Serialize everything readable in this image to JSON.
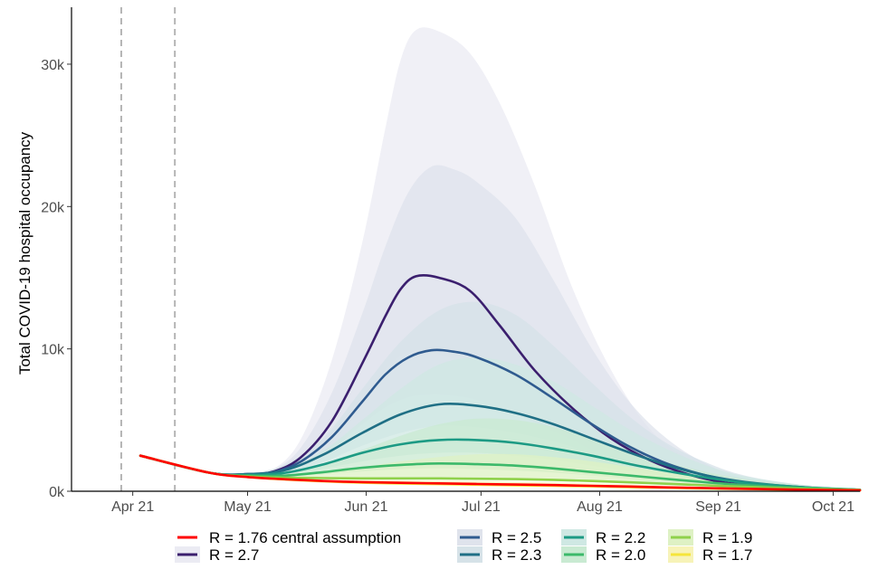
{
  "chart_data": {
    "type": "area",
    "title": "",
    "xlabel": "",
    "ylabel": "Total COVID-19 hospital occupancy",
    "x_tick_labels": [
      "Apr 21",
      "May 21",
      "Jun 21",
      "Jul 21",
      "Aug 21",
      "Sep 21",
      "Oct 21"
    ],
    "y_tick_labels": [
      "0k",
      "10k",
      "20k",
      "30k"
    ],
    "y_ticks": [
      0,
      10000,
      20000,
      30000
    ],
    "ylim": [
      0,
      34000
    ],
    "xlim_days": [
      -16,
      190
    ],
    "x_ticks_days": [
      0,
      30,
      61,
      91,
      122,
      153,
      183
    ],
    "vlines_days": [
      -3,
      11
    ],
    "series": [
      {
        "name": "R = 2.7",
        "color": "#3b1f6e",
        "band_color": "#ebebf3",
        "x_days": [
          2,
          20,
          30,
          37,
          44,
          52,
          60,
          66,
          70,
          74,
          80,
          88,
          96,
          105,
          115,
          125,
          135,
          145,
          155,
          170,
          185,
          190
        ],
        "values": [
          2500,
          1300,
          1200,
          1400,
          2400,
          4900,
          9000,
          12300,
          14200,
          15100,
          15000,
          14100,
          11600,
          8500,
          5800,
          3700,
          2200,
          1200,
          600,
          200,
          80,
          60
        ],
        "band_low": [
          2500,
          1300,
          1200,
          1300,
          2000,
          3800,
          6500,
          8500,
          9500,
          9800,
          9600,
          8800,
          7200,
          5300,
          3600,
          2300,
          1400,
          800,
          400,
          150,
          60,
          40
        ],
        "band_high": [
          2500,
          1300,
          1250,
          1600,
          3700,
          9200,
          17500,
          25500,
          30300,
          32400,
          32300,
          30800,
          27200,
          21500,
          14200,
          8500,
          4400,
          2300,
          1100,
          400,
          150,
          100
        ]
      },
      {
        "name": "R = 2.5",
        "color": "#2f5b8f",
        "band_color": "#dfe3ec",
        "x_days": [
          2,
          20,
          30,
          37,
          44,
          52,
          60,
          66,
          72,
          78,
          84,
          90,
          100,
          110,
          120,
          130,
          140,
          150,
          160,
          175,
          190
        ],
        "values": [
          2500,
          1300,
          1200,
          1350,
          2100,
          3800,
          6300,
          8200,
          9400,
          9900,
          9800,
          9400,
          8200,
          6500,
          4700,
          3100,
          1900,
          1100,
          550,
          200,
          80
        ],
        "band_low": [
          2500,
          1300,
          1200,
          1300,
          1800,
          3000,
          4700,
          5900,
          6600,
          6800,
          6700,
          6400,
          5400,
          4200,
          3000,
          2000,
          1200,
          700,
          350,
          130,
          50
        ],
        "band_high": [
          2500,
          1300,
          1250,
          1550,
          3100,
          6900,
          12500,
          17200,
          21000,
          22800,
          22600,
          21700,
          19200,
          14800,
          10000,
          6200,
          3600,
          1900,
          900,
          350,
          130
        ]
      },
      {
        "name": "R = 2.3",
        "color": "#1f6f85",
        "band_color": "#d6e2e8",
        "x_days": [
          2,
          20,
          30,
          40,
          50,
          60,
          70,
          80,
          90,
          100,
          110,
          120,
          130,
          140,
          150,
          160,
          175,
          190
        ],
        "values": [
          2500,
          1300,
          1200,
          1500,
          2600,
          4100,
          5400,
          6100,
          6000,
          5500,
          4700,
          3700,
          2700,
          1800,
          1100,
          650,
          280,
          100
        ],
        "band_low": [
          2500,
          1300,
          1200,
          1400,
          2100,
          3200,
          4100,
          4600,
          4500,
          4100,
          3500,
          2700,
          2000,
          1300,
          800,
          450,
          200,
          70
        ],
        "band_high": [
          2500,
          1300,
          1250,
          1900,
          3800,
          7200,
          10500,
          12700,
          13300,
          12400,
          10200,
          7600,
          5200,
          3300,
          2000,
          1100,
          450,
          160
        ]
      },
      {
        "name": "R = 2.2",
        "color": "#1c9a84",
        "band_color": "#cfe8e3",
        "x_days": [
          2,
          20,
          30,
          40,
          50,
          60,
          70,
          80,
          90,
          100,
          110,
          120,
          130,
          140,
          150,
          160,
          175,
          190
        ],
        "values": [
          2500,
          1300,
          1150,
          1300,
          1900,
          2700,
          3300,
          3600,
          3600,
          3400,
          3000,
          2500,
          1900,
          1400,
          950,
          600,
          280,
          110
        ],
        "band_low": [
          2500,
          1300,
          1150,
          1250,
          1600,
          2100,
          2500,
          2700,
          2700,
          2500,
          2200,
          1800,
          1400,
          1000,
          680,
          430,
          200,
          80
        ],
        "band_high": [
          2500,
          1300,
          1200,
          1600,
          2900,
          5000,
          7200,
          8900,
          9400,
          8900,
          7700,
          6000,
          4300,
          2900,
          1800,
          1050,
          450,
          170
        ]
      },
      {
        "name": "R = 2.0",
        "color": "#3cb96a",
        "band_color": "#c9ead2",
        "x_days": [
          2,
          20,
          30,
          40,
          50,
          60,
          70,
          80,
          90,
          100,
          110,
          120,
          130,
          140,
          150,
          160,
          175,
          190
        ],
        "values": [
          2500,
          1300,
          1100,
          1100,
          1350,
          1650,
          1850,
          1950,
          1900,
          1800,
          1600,
          1350,
          1100,
          850,
          620,
          430,
          230,
          100
        ],
        "band_low": [
          2500,
          1300,
          1100,
          1050,
          1200,
          1400,
          1550,
          1600,
          1550,
          1450,
          1300,
          1100,
          880,
          680,
          500,
          350,
          180,
          80
        ],
        "band_high": [
          2500,
          1300,
          1150,
          1350,
          1950,
          2900,
          3900,
          4700,
          5100,
          5000,
          4500,
          3700,
          2800,
          2000,
          1350,
          850,
          400,
          160
        ]
      },
      {
        "name": "R = 1.9",
        "color": "#8fd14b",
        "band_color": "#def1c4",
        "x_days": [
          2,
          20,
          30,
          40,
          50,
          60,
          70,
          80,
          90,
          100,
          110,
          120,
          130,
          140,
          150,
          160,
          175,
          190
        ],
        "values": [
          2500,
          1300,
          1050,
          950,
          920,
          900,
          900,
          900,
          880,
          850,
          800,
          720,
          620,
          520,
          410,
          310,
          180,
          90
        ],
        "band_low": [
          2500,
          1300,
          1050,
          920,
          860,
          830,
          820,
          810,
          790,
          760,
          710,
          640,
          550,
          460,
          360,
          270,
          160,
          80
        ],
        "band_high": [
          2500,
          1300,
          1100,
          1150,
          1350,
          1700,
          2100,
          2400,
          2600,
          2600,
          2400,
          2100,
          1700,
          1300,
          950,
          650,
          330,
          140
        ]
      },
      {
        "name": "R = 1.7",
        "color": "#f5e53a",
        "band_color": "#f7f3b8",
        "x_days": [
          2,
          20,
          30,
          40,
          50,
          60,
          70,
          80,
          90,
          100,
          110,
          120,
          130,
          140,
          150,
          160,
          175,
          190
        ],
        "values": [
          2500,
          1300,
          1000,
          820,
          690,
          600,
          540,
          500,
          460,
          420,
          380,
          340,
          290,
          240,
          190,
          150,
          100,
          60
        ],
        "band_low": [
          2500,
          1300,
          980,
          790,
          660,
          570,
          510,
          470,
          430,
          390,
          350,
          310,
          260,
          210,
          170,
          130,
          85,
          50
        ],
        "band_high": [
          2500,
          1300,
          1050,
          900,
          820,
          780,
          760,
          740,
          710,
          670,
          620,
          560,
          480,
          400,
          320,
          250,
          150,
          80
        ]
      },
      {
        "name": "R = 1.76 central assumption",
        "color": "#ff0000",
        "band_color": "",
        "x_days": [
          2,
          20,
          30,
          40,
          50,
          60,
          70,
          80,
          90,
          100,
          110,
          120,
          130,
          140,
          150,
          160,
          175,
          190
        ],
        "values": [
          2500,
          1300,
          1000,
          840,
          720,
          640,
          590,
          550,
          510,
          470,
          430,
          380,
          330,
          270,
          220,
          170,
          110,
          70
        ]
      }
    ],
    "legend": {
      "position": "bottom",
      "entries": [
        {
          "label": "R = 1.76 central assumption",
          "color": "#ff0000",
          "band_color": ""
        },
        {
          "label": "R = 2.7",
          "color": "#3b1f6e",
          "band_color": "#ebebf3"
        },
        {
          "label": "R = 2.5",
          "color": "#2f5b8f",
          "band_color": "#dfe3ec"
        },
        {
          "label": "R = 2.3",
          "color": "#1f6f85",
          "band_color": "#d6e2e8"
        },
        {
          "label": "R = 2.2",
          "color": "#1c9a84",
          "band_color": "#cfe8e3"
        },
        {
          "label": "R = 2.0",
          "color": "#3cb96a",
          "band_color": "#c9ead2"
        },
        {
          "label": "R = 1.9",
          "color": "#8fd14b",
          "band_color": "#def1c4"
        },
        {
          "label": "R = 1.7",
          "color": "#f5e53a",
          "band_color": "#f7f3b8"
        }
      ]
    }
  }
}
